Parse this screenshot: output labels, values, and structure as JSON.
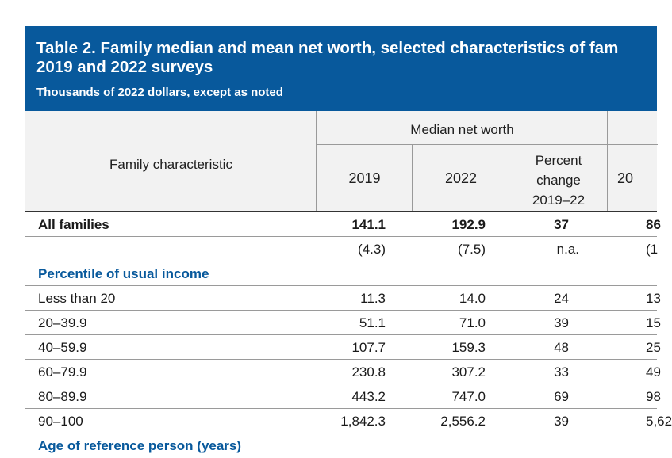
{
  "table": {
    "title_line1": "Table 2. Family median and mean net worth, selected characteristics of fam",
    "title_line2": "2019 and 2022 surveys",
    "subtitle": "Thousands of 2022 dollars, except as noted",
    "header": {
      "family_characteristic": "Family characteristic",
      "median_group": "Median net worth",
      "col_2019": "2019",
      "col_2022": "2022",
      "pct_line1": "Percent",
      "pct_line2": "change",
      "pct_line3": "2019–22",
      "partial_col": "20"
    },
    "all_families": {
      "label": "All families",
      "v2019": "141.1",
      "v2022": "192.9",
      "pct": "37",
      "partial": "86"
    },
    "se_row": {
      "v2019": "(4.3)",
      "v2022": "(7.5)",
      "pct": "n.a.",
      "partial": "(1"
    },
    "section1": "Percentile of usual income",
    "rows": [
      {
        "label": "Less than 20",
        "v2019": "11.3",
        "v2022": "14.0",
        "pct": "24",
        "partial": "13"
      },
      {
        "label": "20–39.9",
        "v2019": "51.1",
        "v2022": "71.0",
        "pct": "39",
        "partial": "15"
      },
      {
        "label": "40–59.9",
        "v2019": "107.7",
        "v2022": "159.3",
        "pct": "48",
        "partial": "25"
      },
      {
        "label": "60–79.9",
        "v2019": "230.8",
        "v2022": "307.2",
        "pct": "33",
        "partial": "49"
      },
      {
        "label": "80–89.9",
        "v2019": "443.2",
        "v2022": "747.0",
        "pct": "69",
        "partial": "98"
      },
      {
        "label": "90–100",
        "v2019": "1,842.3",
        "v2022": "2,556.2",
        "pct": "39",
        "partial": "5,62"
      }
    ],
    "section2": "Age of reference person (years)"
  }
}
